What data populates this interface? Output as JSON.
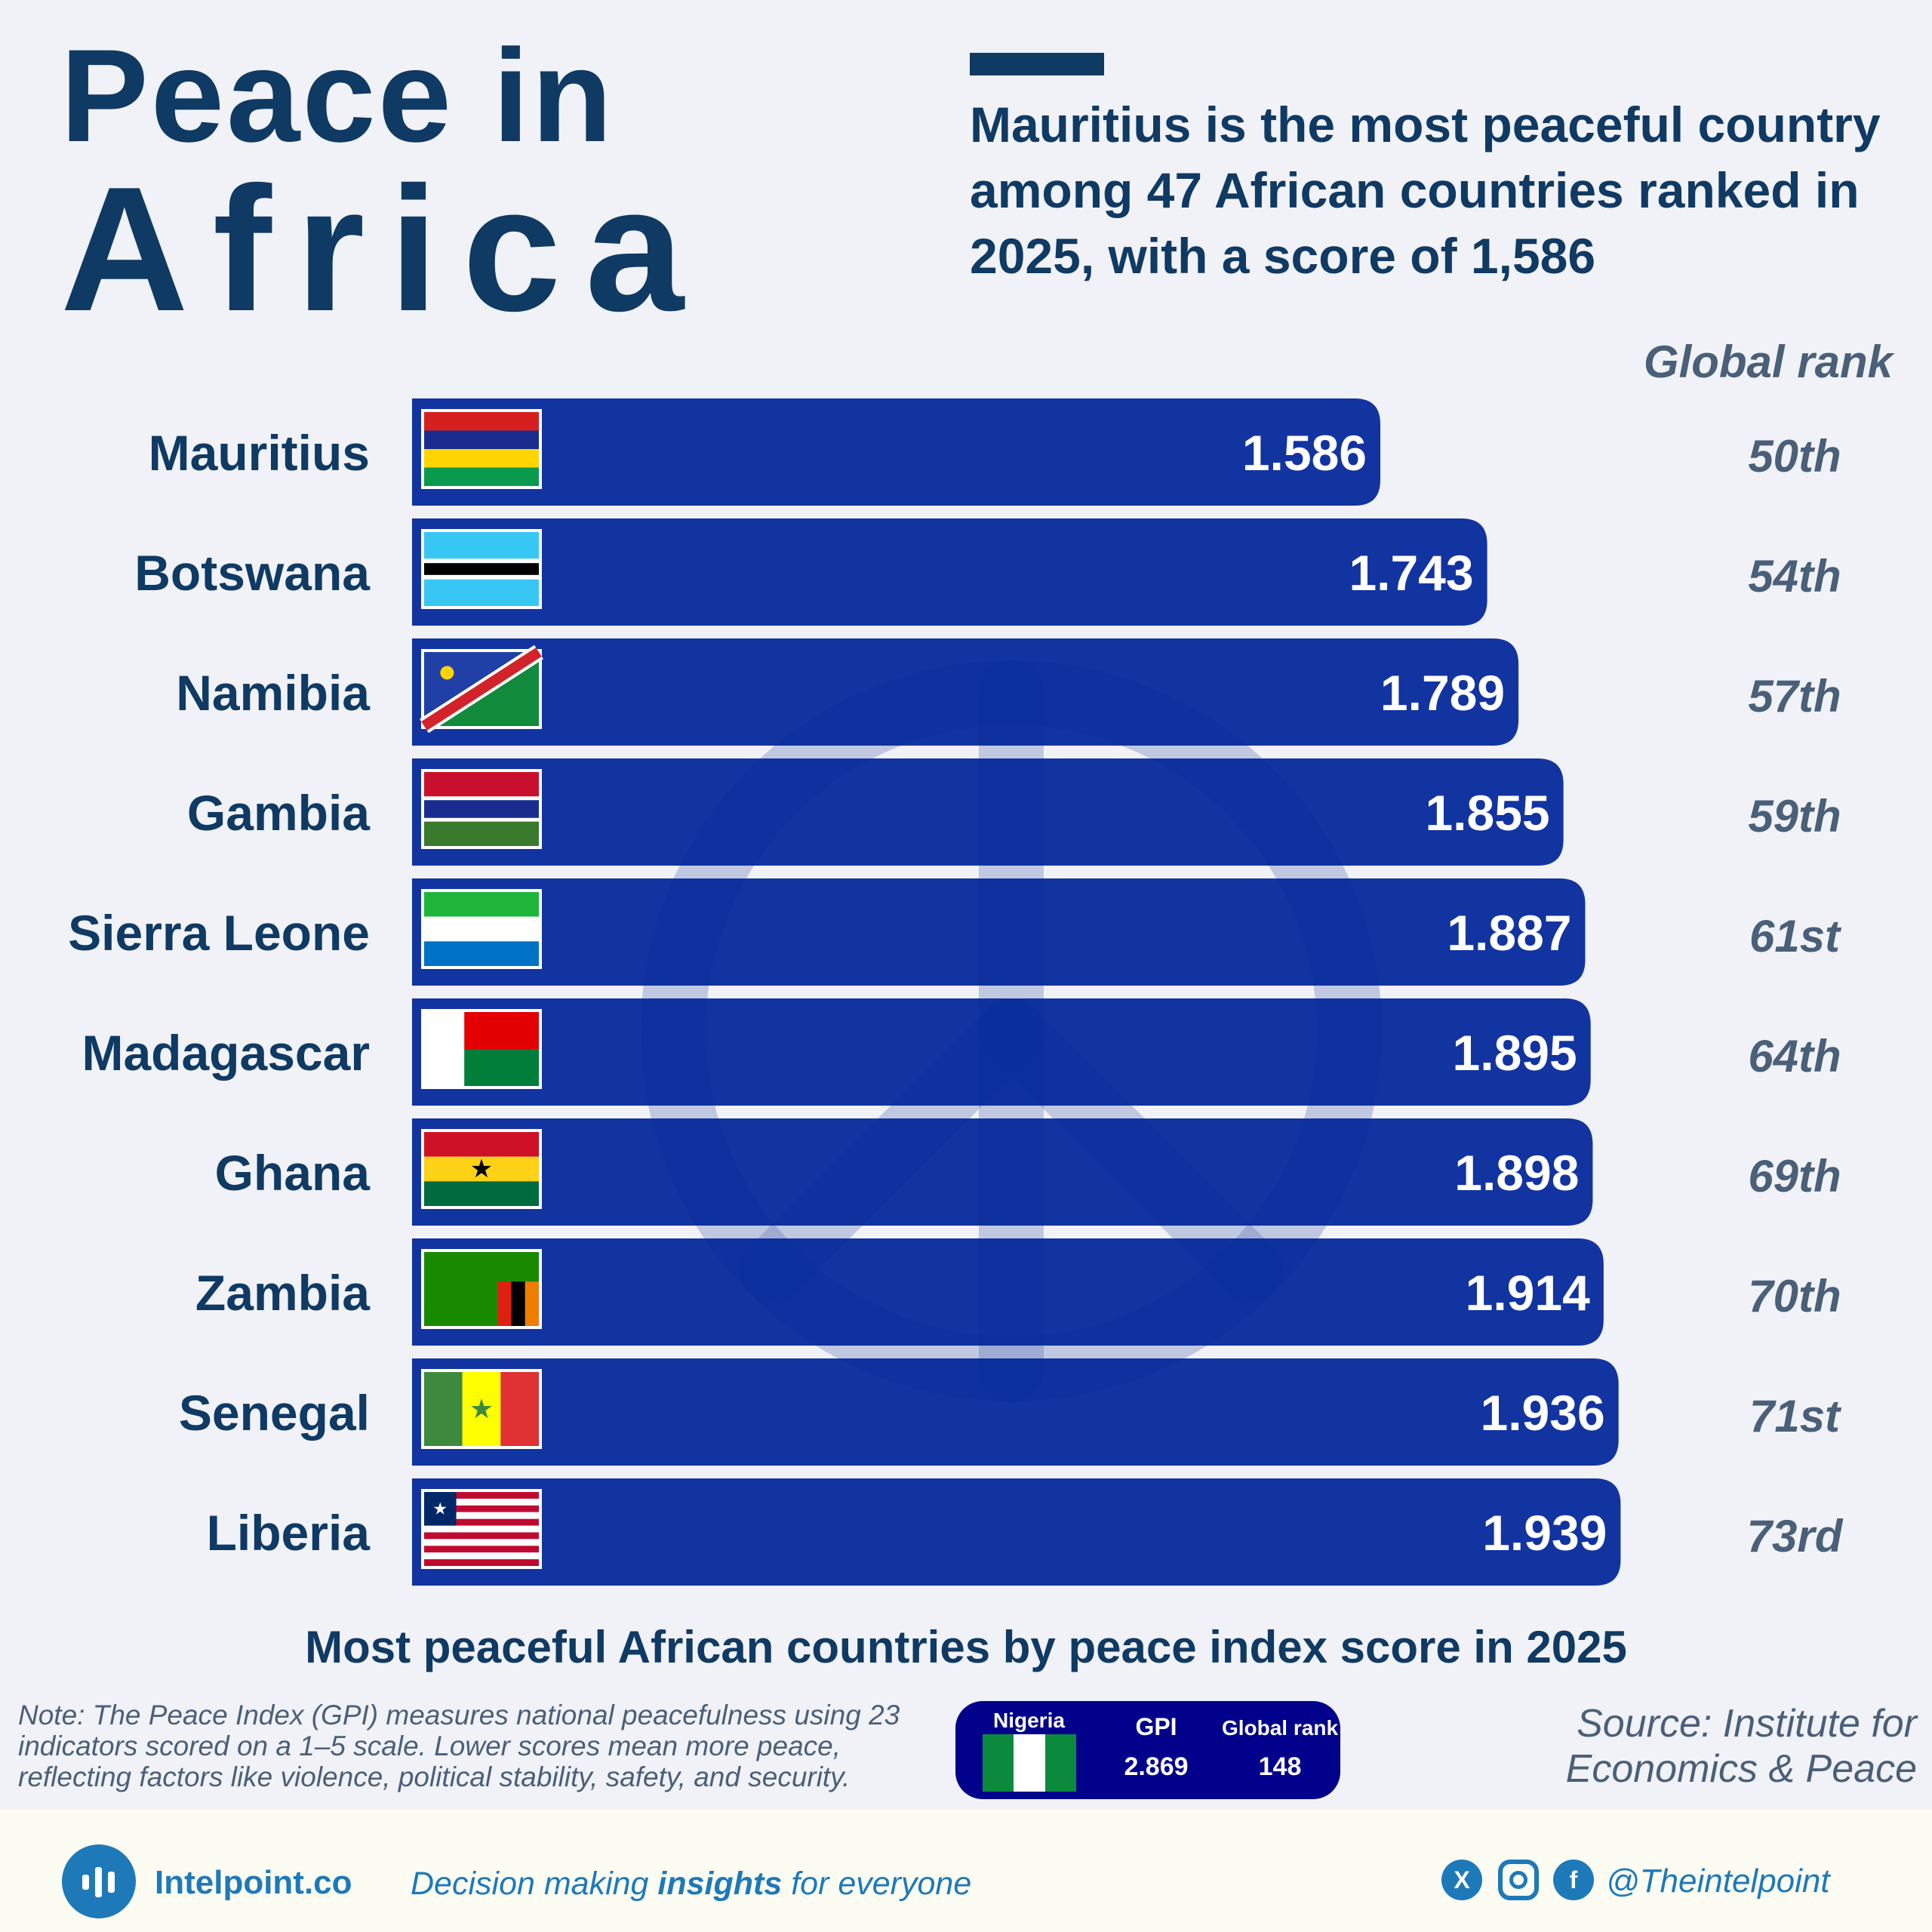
{
  "header": {
    "title_line1": "Peace in",
    "title_line2": "Africa",
    "headline": "Mauritius is the most peaceful country among 47 African countries ranked in 2025, with a score of 1,586",
    "rank_column_header": "Global rank"
  },
  "chart_data": {
    "type": "bar",
    "orientation": "horizontal",
    "title": "Most peaceful African countries by peace index score in 2025",
    "categories": [
      "Mauritius",
      "Botswana",
      "Namibia",
      "Gambia",
      "Sierra Leone",
      "Madagascar",
      "Ghana",
      "Zambia",
      "Senegal",
      "Liberia"
    ],
    "series": [
      {
        "values": [
          1.586,
          1.743,
          1.789,
          1.855,
          1.887,
          1.895,
          1.898,
          1.914,
          1.936,
          1.939
        ]
      }
    ],
    "value_labels": [
      "1.586",
      "1.743",
      "1.789",
      "1.855",
      "1.887",
      "1.895",
      "1.898",
      "1.914",
      "1.936",
      "1.939"
    ],
    "global_ranks": [
      "50th",
      "54th",
      "57th",
      "59th",
      "61st",
      "64th",
      "69th",
      "70th",
      "71st",
      "73rd"
    ],
    "bar_color": "#01269a",
    "grid": false
  },
  "note": "Note: The Peace Index (GPI) measures national peacefulness using 23 indicators scored on a 1–5 scale. Lower scores mean more peace, reflecting factors like violence, political stability, safety, and security.",
  "badge": {
    "country": "Nigeria",
    "gpi_label": "GPI",
    "gpi_value": "2.869",
    "rank_label": "Global rank",
    "rank_value": "148",
    "background": "#01018b"
  },
  "source": "Source: Institute for Economics & Peace",
  "footer": {
    "site": "Intelpoint.co",
    "tagline_before": "Decision making ",
    "tagline_bold": "insights",
    "tagline_after": " for everyone",
    "handle": "@Theintelpoint",
    "social_icons": [
      "x-icon",
      "instagram-icon",
      "facebook-icon"
    ]
  },
  "colors": {
    "background": "#f1f2f7",
    "title": "#0f3a63",
    "rank_text": "#4a6079",
    "brand": "#1e79b9"
  }
}
